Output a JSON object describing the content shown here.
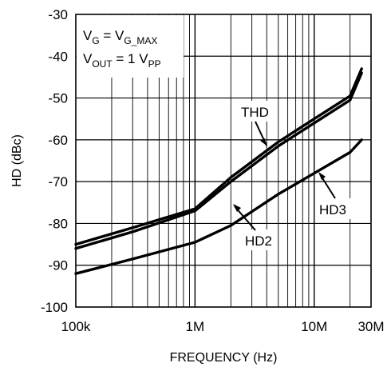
{
  "chart_data": {
    "type": "line",
    "xlabel": "FREQUENCY (Hz)",
    "ylabel": "HD (dBc)",
    "x_scale": "log",
    "xlim": [
      100000,
      30000000
    ],
    "ylim": [
      -100,
      -30
    ],
    "grid": true,
    "x_ticks": [
      {
        "value": 100000,
        "label": "100k"
      },
      {
        "value": 1000000,
        "label": "1M"
      },
      {
        "value": 10000000,
        "label": "10M"
      },
      {
        "value": 30000000,
        "label": "30M"
      }
    ],
    "y_ticks": [
      -30,
      -40,
      -50,
      -60,
      -70,
      -80,
      -90,
      -100
    ],
    "conditions": {
      "line1": {
        "v": "V",
        "sub_g": "G",
        "eq": " = V",
        "sub_gmax": "G_MAX"
      },
      "line2": {
        "v": "V",
        "sub_out": "OUT",
        "eq": " = 1 V",
        "sub_pp": "PP"
      }
    },
    "series": [
      {
        "name": "THD",
        "x": [
          100000,
          300000,
          1000000,
          2000000,
          5000000,
          10000000,
          20000000,
          25000000
        ],
        "y": [
          -85,
          -81,
          -76.5,
          -69,
          -60.5,
          -55,
          -49.5,
          -43
        ]
      },
      {
        "name": "HD2",
        "x": [
          100000,
          300000,
          1000000,
          2000000,
          5000000,
          10000000,
          20000000,
          25000000
        ],
        "y": [
          -86,
          -82,
          -77,
          -70,
          -61.5,
          -56,
          -50.5,
          -44
        ]
      },
      {
        "name": "HD3",
        "x": [
          100000,
          300000,
          1000000,
          2000000,
          5000000,
          10000000,
          20000000,
          25000000
        ],
        "y": [
          -92,
          -88.5,
          -84.5,
          -80.5,
          -73,
          -68,
          -63,
          -60
        ]
      }
    ],
    "annotations": [
      {
        "label": "THD",
        "series": "THD"
      },
      {
        "label": "HD2",
        "series": "HD2"
      },
      {
        "label": "HD3",
        "series": "HD3"
      }
    ]
  }
}
